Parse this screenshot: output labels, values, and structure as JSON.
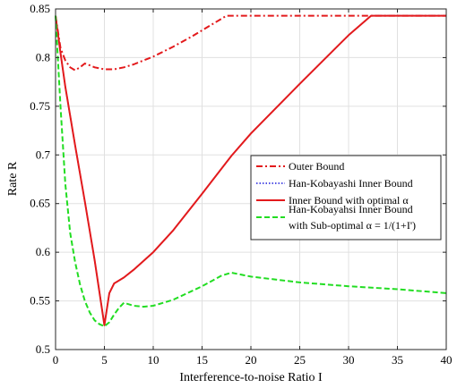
{
  "chart_data": {
    "type": "line",
    "xlabel": "Interference-to-noise Ratio I",
    "ylabel": "Rate R",
    "xlim": [
      0,
      40
    ],
    "ylim": [
      0.5,
      0.85
    ],
    "xticks": [
      0,
      5,
      10,
      15,
      20,
      25,
      30,
      35,
      40
    ],
    "yticks": [
      0.5,
      0.55,
      0.6,
      0.65,
      0.7,
      0.75,
      0.8,
      0.85
    ],
    "xtick_labels": [
      "0",
      "5",
      "10",
      "15",
      "20",
      "25",
      "30",
      "35",
      "40"
    ],
    "ytick_labels": [
      "0.5",
      "0.55",
      "0.6",
      "0.65",
      "0.7",
      "0.75",
      "0.8",
      "0.85"
    ],
    "grid": true,
    "legend_position": "right",
    "series": [
      {
        "name": "Outer Bound",
        "color": "#e31a1c",
        "style": "dashdot",
        "x": [
          0,
          0.5,
          1,
          1.5,
          2,
          2.5,
          3,
          3.5,
          4,
          5,
          6,
          7,
          8,
          10,
          12,
          14,
          16,
          17.5,
          18,
          20,
          25,
          30,
          35,
          40
        ],
        "y": [
          0.843,
          0.81,
          0.797,
          0.79,
          0.787,
          0.79,
          0.794,
          0.792,
          0.79,
          0.788,
          0.788,
          0.79,
          0.793,
          0.801,
          0.811,
          0.822,
          0.834,
          0.843,
          0.843,
          0.843,
          0.843,
          0.843,
          0.843,
          0.843
        ]
      },
      {
        "name": "Han-Kobayashi Inner Bound",
        "color": "#1a1adb",
        "style": "dotted",
        "x": [
          0,
          0.5,
          1,
          2,
          3,
          4,
          5,
          5.5,
          6,
          7,
          8,
          10,
          12,
          15,
          18,
          20,
          25,
          30,
          32.3,
          35,
          40
        ],
        "y": [
          0.843,
          0.805,
          0.77,
          0.71,
          0.652,
          0.592,
          0.525,
          0.558,
          0.568,
          0.574,
          0.582,
          0.6,
          0.622,
          0.66,
          0.699,
          0.722,
          0.773,
          0.823,
          0.843,
          0.843,
          0.843
        ]
      },
      {
        "name": "Inner Bound with optimal α",
        "color": "#e31a1c",
        "style": "solid",
        "x": [
          0,
          0.5,
          1,
          2,
          3,
          4,
          5,
          5.5,
          6,
          7,
          8,
          10,
          12,
          15,
          18,
          20,
          25,
          30,
          32.3,
          35,
          40
        ],
        "y": [
          0.843,
          0.805,
          0.77,
          0.71,
          0.652,
          0.592,
          0.525,
          0.558,
          0.568,
          0.574,
          0.582,
          0.6,
          0.622,
          0.66,
          0.699,
          0.722,
          0.773,
          0.823,
          0.843,
          0.843,
          0.843
        ]
      },
      {
        "name": "Han-Kobayahsi Inner Bound with Sub-optimal α = 1/(1+I')",
        "color": "#22dd22",
        "style": "dashed",
        "x": [
          0,
          0.5,
          1,
          1.5,
          2,
          2.5,
          3,
          3.5,
          4,
          4.5,
          5,
          5.5,
          6,
          6.5,
          7,
          8,
          9,
          10,
          12,
          15,
          17,
          18,
          20,
          25,
          30,
          35,
          40
        ],
        "y": [
          0.843,
          0.75,
          0.67,
          0.62,
          0.59,
          0.567,
          0.55,
          0.538,
          0.53,
          0.526,
          0.524,
          0.528,
          0.536,
          0.543,
          0.548,
          0.545,
          0.544,
          0.545,
          0.551,
          0.565,
          0.576,
          0.579,
          0.575,
          0.569,
          0.565,
          0.562,
          0.558
        ]
      }
    ],
    "legend": [
      {
        "lines": [
          "Outer Bound"
        ]
      },
      {
        "lines": [
          "Han-Kobayashi Inner Bound"
        ]
      },
      {
        "lines": [
          "Inner Bound with optimal α"
        ]
      },
      {
        "lines": [
          "Han-Kobayahsi Inner Bound",
          "with Sub-optimal α = 1/(1+I')"
        ]
      }
    ]
  }
}
